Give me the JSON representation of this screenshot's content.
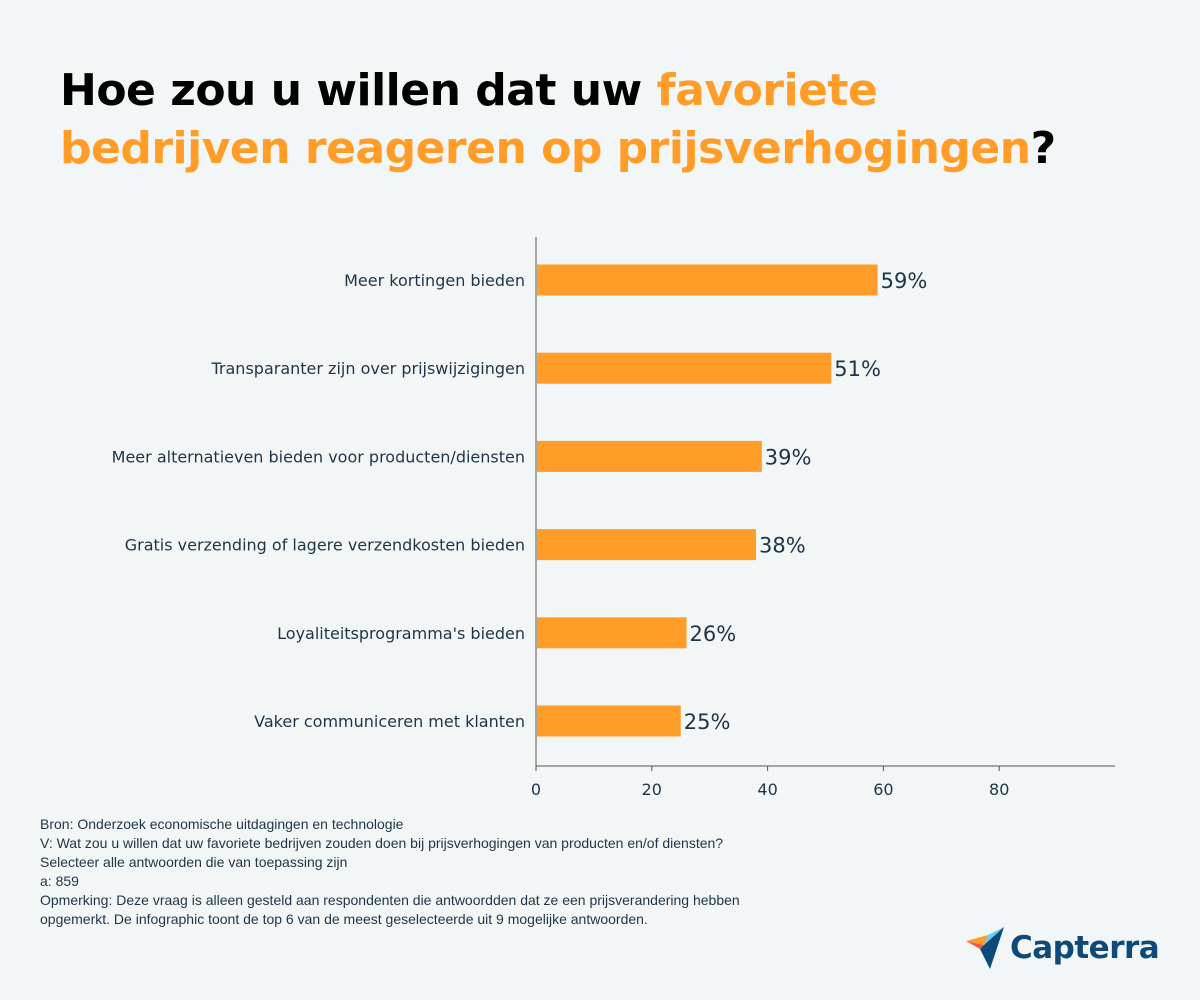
{
  "title": {
    "part1": "Hoe zou u willen dat uw ",
    "highlight1": "favoriete",
    "highlight2": "bedrijven reageren op prijsverhogingen",
    "end": "?"
  },
  "chart_data": {
    "type": "bar",
    "orientation": "horizontal",
    "categories": [
      "Meer kortingen bieden",
      "Transparanter zijn over prijswijzigingen",
      "Meer alternatieven bieden voor producten/diensten",
      "Gratis verzending of lagere verzendkosten bieden",
      "Loyaliteitsprogramma's bieden",
      "Vaker communiceren met klanten"
    ],
    "values": [
      59,
      51,
      39,
      38,
      26,
      25
    ],
    "labels": [
      "59%",
      "51%",
      "39%",
      "38%",
      "26%",
      "25%"
    ],
    "xticks": [
      0,
      20,
      40,
      60,
      80
    ],
    "xlim": [
      0,
      100
    ],
    "bar_color": "#ff9d28",
    "grid": false
  },
  "notes": {
    "source": "Bron:  Onderzoek economische uitdagingen en technologie",
    "question": "V: Wat zou u willen dat uw favoriete bedrijven zouden doen bij prijsverhogingen van producten en/of diensten?",
    "instruction": "Selecteer alle antwoorden die van toepassing zijn",
    "n": "a: 859",
    "remark1": "Opmerking: Deze vraag is alleen gesteld aan respondenten die antwoordden dat ze een prijsverandering hebben",
    "remark2": "opgemerkt. De infographic toont de top 6 van de meest geselecteerde uit 9 mogelijke antwoorden."
  },
  "logo": {
    "text": "Capterra"
  }
}
